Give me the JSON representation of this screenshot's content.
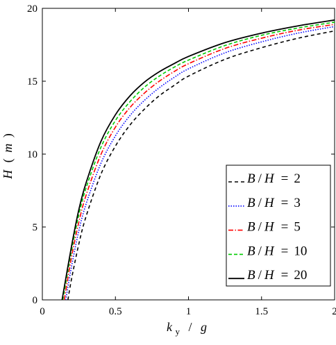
{
  "chart_data": {
    "type": "line",
    "xlabel": {
      "k": "k",
      "sub": "y",
      "sep": "/",
      "g": "g"
    },
    "ylabel": {
      "h": "H",
      "open": "(",
      "unit": "m",
      "close": ")"
    },
    "xlim": [
      0,
      2
    ],
    "ylim": [
      0,
      20
    ],
    "xticks": [
      0,
      0.5,
      1,
      1.5,
      2
    ],
    "yticks": [
      0,
      5,
      10,
      15,
      20
    ],
    "xtick_labels": [
      "0",
      "0.5",
      "1",
      "1.5",
      "2"
    ],
    "ytick_labels": [
      "0",
      "5",
      "10",
      "15",
      "20"
    ],
    "grid": false,
    "legend_position": "lower-right",
    "series": [
      {
        "name": "B / H = 2",
        "legend": {
          "b": "B",
          "slash": "/",
          "h": "H",
          "eq": "=",
          "val": "2"
        },
        "color": "#000000",
        "dash": "5,4",
        "width": 1.6,
        "x": [
          0.175,
          0.2,
          0.25,
          0.3,
          0.4,
          0.5,
          0.6,
          0.7,
          0.8,
          0.9,
          1.0,
          1.25,
          1.5,
          1.75,
          2.0
        ],
        "y": [
          0,
          1.45,
          3.85,
          5.75,
          8.6,
          10.55,
          12.0,
          13.1,
          14.0,
          14.7,
          15.35,
          16.5,
          17.3,
          17.95,
          18.45
        ]
      },
      {
        "name": "B / H = 3",
        "legend": {
          "b": "B",
          "slash": "/",
          "h": "H",
          "eq": "=",
          "val": "3"
        },
        "color": "#0000ff",
        "dash": "1.5,2",
        "width": 1.6,
        "x": [
          0.16,
          0.2,
          0.25,
          0.3,
          0.4,
          0.5,
          0.6,
          0.7,
          0.8,
          0.9,
          1.0,
          1.25,
          1.5,
          1.75,
          2.0
        ],
        "y": [
          0,
          2.3,
          4.75,
          6.6,
          9.35,
          11.25,
          12.65,
          13.7,
          14.55,
          15.25,
          15.85,
          16.95,
          17.7,
          18.3,
          18.75
        ]
      },
      {
        "name": "B / H = 5",
        "legend": {
          "b": "B",
          "slash": "/",
          "h": "H",
          "eq": "=",
          "val": "5"
        },
        "color": "#ff0000",
        "dash": "7,2.5,1.5,2.5",
        "width": 1.6,
        "x": [
          0.15,
          0.2,
          0.25,
          0.3,
          0.4,
          0.5,
          0.6,
          0.7,
          0.8,
          0.9,
          1.0,
          1.25,
          1.5,
          1.75,
          2.0
        ],
        "y": [
          0,
          2.95,
          5.35,
          7.2,
          9.95,
          11.85,
          13.2,
          14.2,
          15.0,
          15.65,
          16.2,
          17.25,
          17.95,
          18.5,
          18.9
        ]
      },
      {
        "name": "B / H = 10",
        "legend": {
          "b": "B",
          "slash": "/",
          "h": "H",
          "eq": "=",
          "val": "10"
        },
        "color": "#00cc00",
        "dash": "5,3",
        "width": 1.6,
        "x": [
          0.14,
          0.2,
          0.25,
          0.3,
          0.4,
          0.5,
          0.6,
          0.7,
          0.8,
          0.9,
          1.0,
          1.25,
          1.5,
          1.75,
          2.0
        ],
        "y": [
          0,
          3.4,
          5.85,
          7.7,
          10.45,
          12.3,
          13.6,
          14.6,
          15.35,
          15.95,
          16.45,
          17.45,
          18.15,
          18.65,
          19.05
        ]
      },
      {
        "name": "B / H = 20",
        "legend": {
          "b": "B",
          "slash": "/",
          "h": "H",
          "eq": "=",
          "val": "20"
        },
        "color": "#000000",
        "dash": "",
        "width": 1.8,
        "x": [
          0.135,
          0.2,
          0.25,
          0.3,
          0.4,
          0.5,
          0.6,
          0.7,
          0.8,
          0.9,
          1.0,
          1.25,
          1.5,
          1.75,
          2.0
        ],
        "y": [
          0,
          3.7,
          6.2,
          8.05,
          10.85,
          12.7,
          14.0,
          14.95,
          15.65,
          16.2,
          16.7,
          17.65,
          18.3,
          18.8,
          19.2
        ]
      }
    ]
  }
}
